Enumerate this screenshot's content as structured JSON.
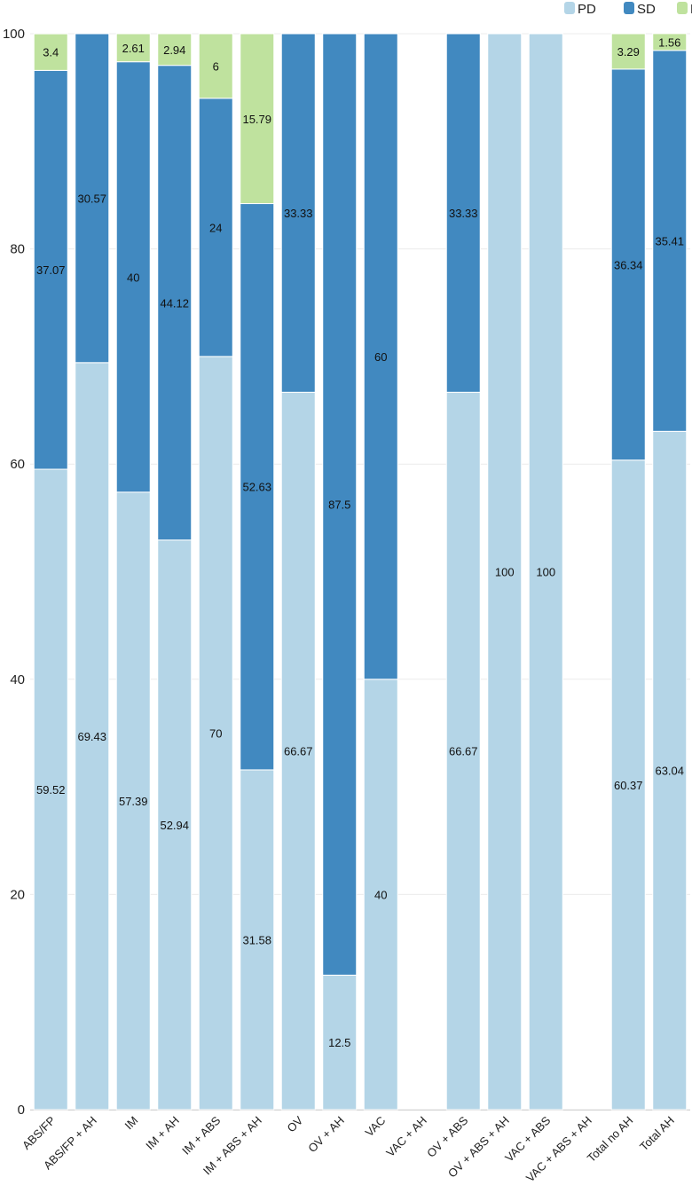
{
  "chart_data": {
    "type": "bar",
    "stacked": true,
    "title": "",
    "xlabel": "",
    "ylabel": "",
    "ylim": [
      0,
      100
    ],
    "yticks": [
      0,
      20,
      40,
      60,
      80,
      100
    ],
    "legend_position": "top-right",
    "categories": [
      "ABS/FP",
      "ABS/FP + AH",
      "IM",
      "IM + AH",
      "IM + ABS",
      "IM + ABS + AH",
      "OV",
      "OV + AH",
      "VAC",
      "VAC + AH",
      "OV + ABS",
      "OV + ABS + AH",
      "VAC + ABS",
      "VAC + ABS + AH",
      "Total no AH",
      "Total AH"
    ],
    "series": [
      {
        "name": "PD",
        "color": "#b4d5e7",
        "values": [
          59.52,
          69.43,
          57.39,
          52.94,
          70,
          31.58,
          66.67,
          12.5,
          40,
          null,
          66.67,
          100,
          100,
          null,
          60.37,
          63.04
        ]
      },
      {
        "name": "SD",
        "color": "#4189c0",
        "values": [
          37.07,
          30.57,
          40,
          44.12,
          24,
          52.63,
          33.33,
          87.5,
          60,
          null,
          33.33,
          null,
          null,
          null,
          36.34,
          35.41
        ]
      },
      {
        "name": "PR",
        "color": "#bfe29e",
        "values": [
          3.4,
          null,
          2.61,
          2.94,
          6,
          15.79,
          null,
          null,
          null,
          null,
          null,
          null,
          null,
          null,
          3.29,
          1.56
        ]
      }
    ],
    "grid": true
  }
}
